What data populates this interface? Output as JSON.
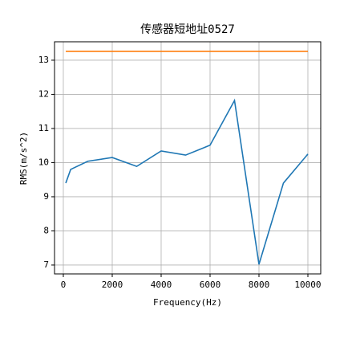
{
  "chart_data": {
    "type": "line",
    "title": "传感器短地址0527",
    "xlabel": "Frequency(Hz)",
    "ylabel": "RMS(m/s^2)",
    "x": [
      100,
      300,
      1000,
      2000,
      3000,
      4000,
      5000,
      6000,
      7000,
      8000,
      9000,
      10000
    ],
    "series": [
      {
        "color": "#1f77b4",
        "values": [
          9.4,
          9.8,
          10.04,
          10.15,
          9.89,
          10.34,
          10.22,
          10.51,
          11.82,
          7.02,
          9.4,
          10.25
        ]
      },
      {
        "color": "#ff7f0e",
        "values": [
          13.26,
          13.26,
          13.26,
          13.26,
          13.26,
          13.26,
          13.26,
          13.26,
          13.26,
          13.26,
          13.26,
          13.26
        ]
      }
    ],
    "xlim": [
      -360,
      10525
    ],
    "ylim": [
      6.74,
      13.54
    ],
    "xticks": [
      0,
      2000,
      4000,
      6000,
      8000,
      10000
    ],
    "yticks": [
      7,
      8,
      9,
      10,
      11,
      12,
      13
    ],
    "grid": true
  }
}
